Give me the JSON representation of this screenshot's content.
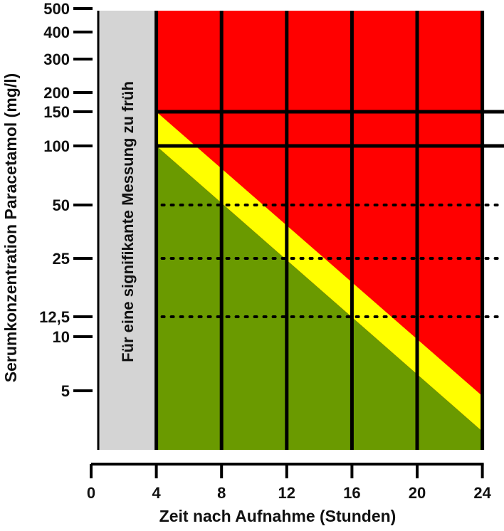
{
  "chart_data": {
    "type": "area",
    "title": "",
    "xlabel": "Zeit nach Aufnahme (Stunden)",
    "ylabel": "Serumkonzentration Paracetamol (mg/l)",
    "xlim": [
      0,
      24
    ],
    "x_ticks": [
      "0",
      "4",
      "8",
      "12",
      "16",
      "20",
      "24"
    ],
    "y_scale": "log",
    "y_ticks": [
      {
        "value": 500,
        "label": "500"
      },
      {
        "value": 400,
        "label": "400"
      },
      {
        "value": 300,
        "label": "300"
      },
      {
        "value": 200,
        "label": "200"
      },
      {
        "value": 150,
        "label": "150"
      },
      {
        "value": 100,
        "label": "100"
      },
      {
        "value": 50,
        "label": "50"
      },
      {
        "value": 25,
        "label": "25"
      },
      {
        "value": 12.5,
        "label": "12,5"
      },
      {
        "value": 10,
        "label": "10"
      },
      {
        "value": 5,
        "label": "5"
      }
    ],
    "too_early_region": {
      "x_range": [
        0,
        4
      ],
      "label": "Für eine signifikante Messung zu früh",
      "color": "#d4d4d4"
    },
    "zones": [
      {
        "name": "red",
        "color": "#ff0000"
      },
      {
        "name": "yellow",
        "color": "#ffff00"
      },
      {
        "name": "green",
        "color": "#6a9a00"
      }
    ],
    "treatment_line": {
      "x": [
        4,
        24
      ],
      "y": [
        150,
        4.7
      ]
    },
    "lower_line": {
      "x": [
        4,
        24
      ],
      "y": [
        100,
        3.1
      ]
    },
    "vertical_grid_x": [
      4,
      8,
      12,
      16,
      20,
      24
    ],
    "solid_horizontal_y": [
      150,
      100
    ],
    "dotted_horizontal_y": [
      50,
      25,
      12.5
    ]
  }
}
